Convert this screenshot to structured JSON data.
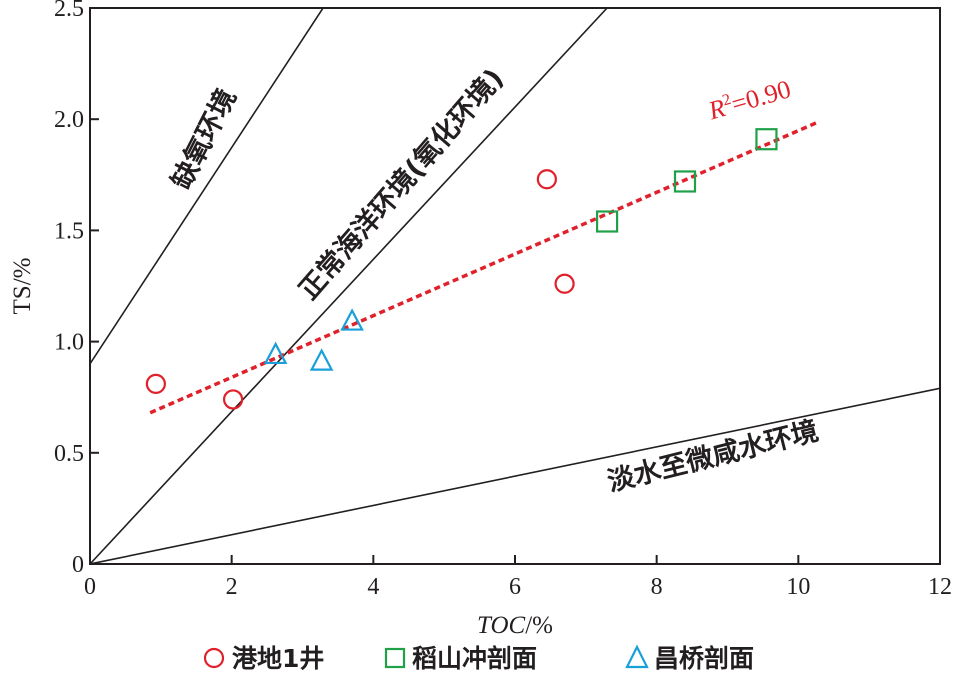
{
  "chart_data": {
    "type": "scatter",
    "xlabel": "TOC/%",
    "ylabel": "TS/%",
    "xlim": [
      0,
      12
    ],
    "ylim": [
      0,
      2.5
    ],
    "x_ticks": [
      "0",
      "2",
      "4",
      "6",
      "8",
      "10",
      "12"
    ],
    "y_ticks": [
      "0",
      "0.5",
      "1.0",
      "1.5",
      "2.0",
      "2.5"
    ],
    "grid": false,
    "legend_position": "bottom",
    "series": [
      {
        "name": "港地1井",
        "marker": "circle",
        "color": "#e0212b",
        "points": [
          {
            "x": 0.93,
            "y": 0.81
          },
          {
            "x": 2.02,
            "y": 0.74
          },
          {
            "x": 6.45,
            "y": 1.73
          },
          {
            "x": 6.7,
            "y": 1.26
          }
        ]
      },
      {
        "name": "稻山冲剖面",
        "marker": "square",
        "color": "#1fa049",
        "points": [
          {
            "x": 7.3,
            "y": 1.54
          },
          {
            "x": 8.4,
            "y": 1.72
          },
          {
            "x": 9.55,
            "y": 1.91
          }
        ]
      },
      {
        "name": "昌桥剖面",
        "marker": "triangle",
        "color": "#1aa0d8",
        "points": [
          {
            "x": 2.62,
            "y": 0.94
          },
          {
            "x": 3.27,
            "y": 0.91
          },
          {
            "x": 3.7,
            "y": 1.09
          }
        ]
      }
    ],
    "boundary_lines": [
      {
        "from": {
          "x": 0,
          "y": 0.9
        },
        "to": {
          "x": 3.29,
          "y": 2.5
        }
      },
      {
        "from": {
          "x": 0,
          "y": 0
        },
        "to": {
          "x": 7.3,
          "y": 2.5
        }
      },
      {
        "from": {
          "x": 0,
          "y": 0
        },
        "to": {
          "x": 12,
          "y": 0.79
        }
      }
    ],
    "trendline": {
      "from": {
        "x": 0.85,
        "y": 0.68
      },
      "to": {
        "x": 10.3,
        "y": 1.99
      },
      "color": "#e0212b",
      "label": "R²=0.90"
    },
    "region_labels": [
      {
        "text": "缺氧环境"
      },
      {
        "text": "正常海洋环境(氧化环境)"
      },
      {
        "text": "淡水至微咸水环境"
      }
    ]
  }
}
